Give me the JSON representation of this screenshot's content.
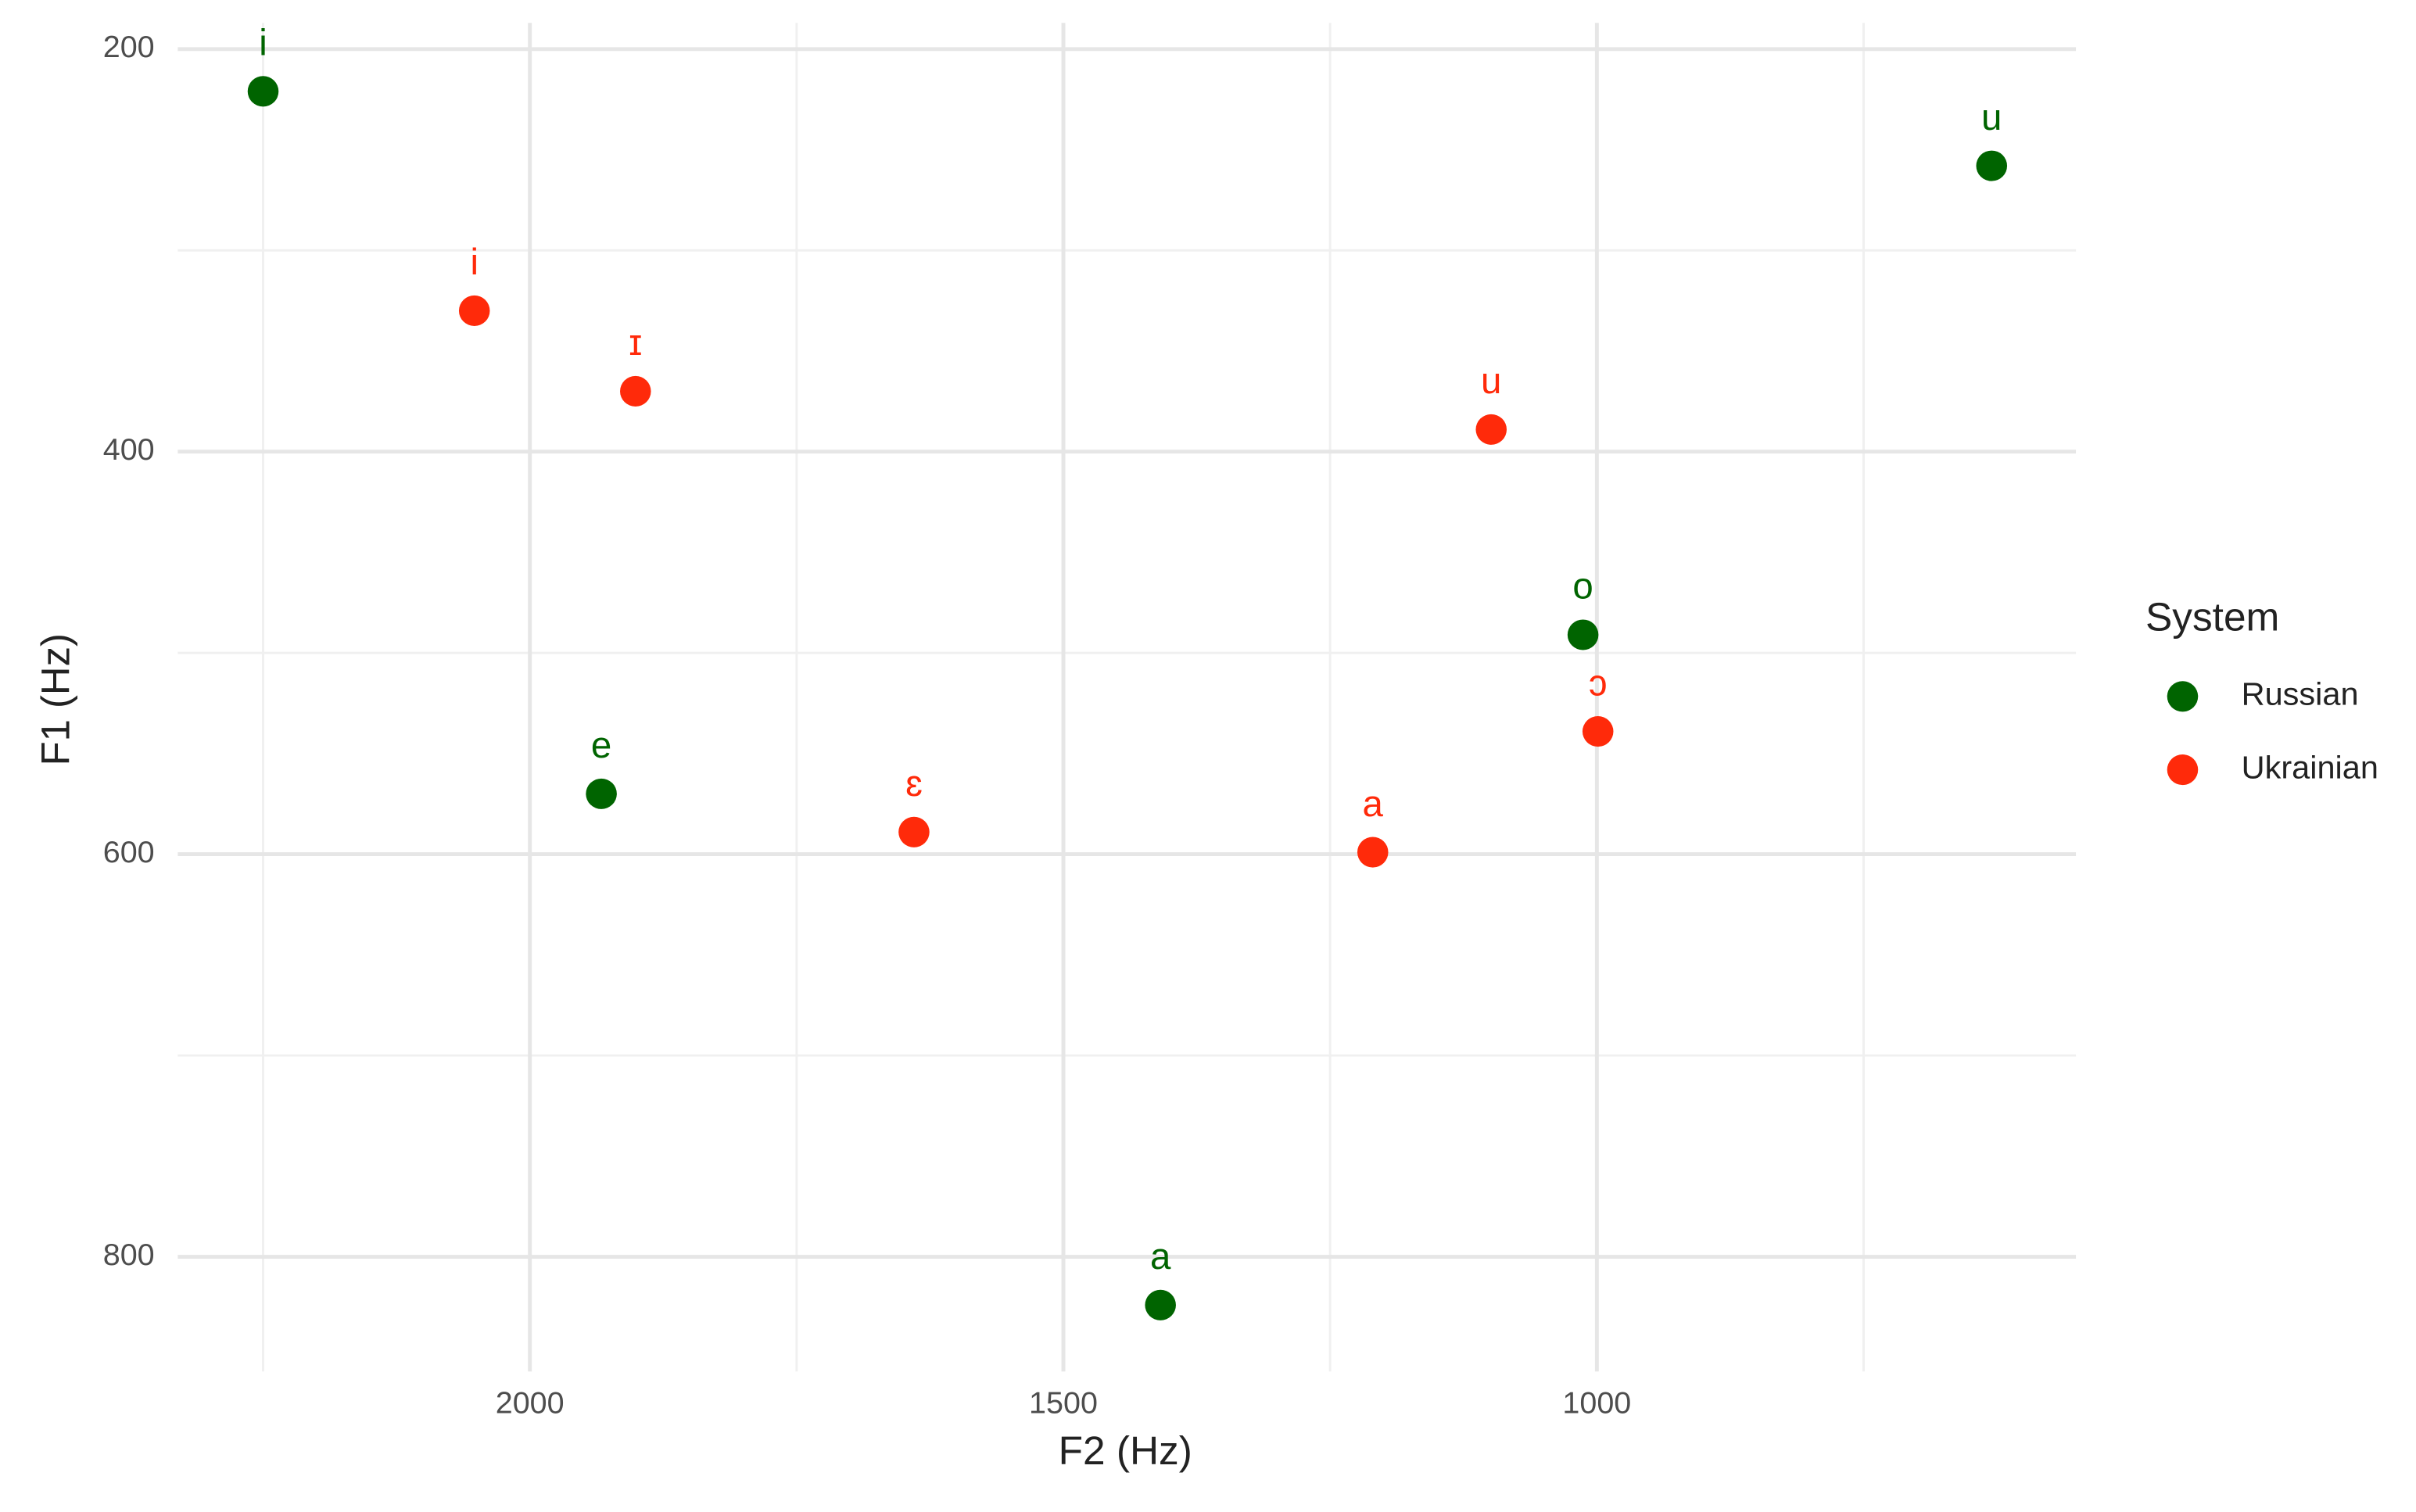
{
  "chart_data": {
    "type": "scatter",
    "x_label": "F2 (Hz)",
    "y_label": "F1 (Hz)",
    "xlim": [
      2330,
      551
    ],
    "ylim": [
      857,
      187
    ],
    "xticks": [
      2000,
      1500,
      1000
    ],
    "yticks": [
      200,
      400,
      600,
      800
    ],
    "x_minor_ticks": [
      2250,
      1750,
      1250,
      750
    ],
    "y_minor_ticks": [
      300,
      500,
      700
    ],
    "grid": true,
    "legend_title": "System",
    "legend_position": "right",
    "series": [
      {
        "name": "Russian",
        "color": "#006400",
        "labels": [
          "i",
          "u",
          "o",
          "e",
          "a"
        ],
        "x": [
          2250,
          630,
          1013,
          1933,
          1409
        ],
        "values": [
          221,
          258,
          491,
          570,
          824
        ]
      },
      {
        "name": "Ukrainian",
        "color": "#ff2a0a",
        "labels": [
          "i",
          "ɪ",
          "u",
          "ɔ",
          "ɛ",
          "a"
        ],
        "x": [
          2052,
          1901,
          1099,
          999,
          1640,
          1210
        ],
        "values": [
          330,
          370,
          389,
          539,
          589,
          599
        ]
      }
    ]
  }
}
